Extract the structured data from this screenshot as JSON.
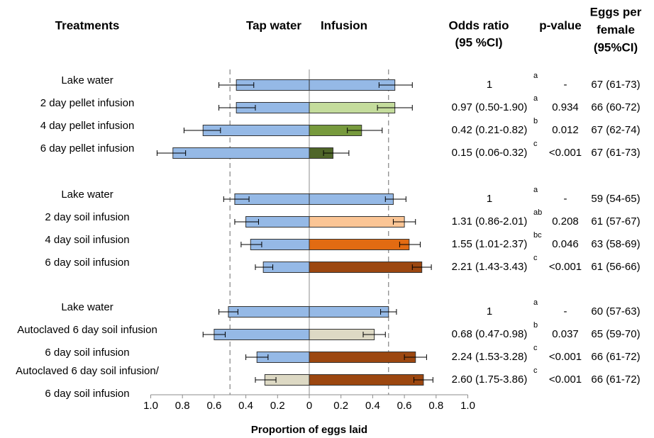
{
  "chart_data": {
    "type": "bar",
    "orientation": "horizontal-back-to-back",
    "xlabel": "Proportion of eggs laid",
    "xlim": [
      -1.0,
      1.0
    ],
    "x_ticks": [
      "1.0",
      "0.8",
      "0.6",
      "0.4",
      "0.2",
      "0",
      "0.2",
      "0.4",
      "0.6",
      "0.8",
      "1.0"
    ],
    "reference_lines": [
      -0.5,
      0.5
    ],
    "headers": {
      "treatments": "Treatments",
      "tap": "Tap water",
      "infusion": "Infusion",
      "odds_line1": "Odds ratio",
      "odds_line2": "(95 %CI)",
      "pvalue": "p-value",
      "eggs_line1": "Eggs per",
      "eggs_line2": "female",
      "eggs_line3": "(95%CI)"
    },
    "colors": {
      "tap": "#95b9e6",
      "lake": "#95b9e6",
      "pellet2": "#c4dc9c",
      "pellet4": "#779a3d",
      "pellet6": "#4f6629",
      "soil2": "#fbc595",
      "soil4": "#e26b12",
      "soil6": "#9c4710",
      "auto": "#ddd9c4"
    },
    "rows": [
      {
        "label": "Lake water",
        "tap": 0.46,
        "tap_err": [
          0.35,
          0.57
        ],
        "inf": 0.54,
        "inf_err": [
          0.44,
          0.65
        ],
        "color": "lake",
        "odds": "1",
        "sup": "a",
        "p": "-",
        "eggs": "67 (61-73)"
      },
      {
        "label": "2 day pellet infusion",
        "tap": 0.46,
        "tap_err": [
          0.34,
          0.57
        ],
        "inf": 0.54,
        "inf_err": [
          0.43,
          0.65
        ],
        "color": "pellet2",
        "odds": "0.97 (0.50-1.90)",
        "sup": "a",
        "p": "0.934",
        "eggs": "66 (60-72)"
      },
      {
        "label": "4 day pellet infusion",
        "tap": 0.67,
        "tap_err": [
          0.56,
          0.79
        ],
        "inf": 0.33,
        "inf_err": [
          0.24,
          0.46
        ],
        "color": "pellet4",
        "odds": "0.42 (0.21-0.82)",
        "sup": "b",
        "p": "0.012",
        "eggs": "67 (62-74)"
      },
      {
        "label": "6 day pellet infusion",
        "tap": 0.86,
        "tap_err": [
          0.78,
          0.96
        ],
        "inf": 0.15,
        "inf_err": [
          0.09,
          0.25
        ],
        "color": "pellet6",
        "odds": "0.15 (0.06-0.32)",
        "sup": "c",
        "p": "<0.001",
        "eggs": "67 (61-73)"
      },
      {
        "label": "Lake water",
        "tap": 0.47,
        "tap_err": [
          0.38,
          0.54
        ],
        "inf": 0.53,
        "inf_err": [
          0.48,
          0.61
        ],
        "color": "lake",
        "odds": "1",
        "sup": "a",
        "p": "-",
        "eggs": "59 (54-65)"
      },
      {
        "label": "2 day soil infusion",
        "tap": 0.4,
        "tap_err": [
          0.32,
          0.47
        ],
        "inf": 0.6,
        "inf_err": [
          0.53,
          0.67
        ],
        "color": "soil2",
        "odds": "1.31 (0.86-2.01)",
        "sup": "ab",
        "p": "0.208",
        "eggs": "61 (57-67)"
      },
      {
        "label": "4 day soil infusion",
        "tap": 0.37,
        "tap_err": [
          0.3,
          0.43
        ],
        "inf": 0.63,
        "inf_err": [
          0.57,
          0.7
        ],
        "color": "soil4",
        "odds": "1.55 (1.01-2.37)",
        "sup": "bc",
        "p": "0.046",
        "eggs": "63 (58-69)"
      },
      {
        "label": "6 day soil infusion",
        "tap": 0.29,
        "tap_err": [
          0.23,
          0.34
        ],
        "inf": 0.71,
        "inf_err": [
          0.65,
          0.77
        ],
        "color": "soil6",
        "odds": "2.21 (1.43-3.43)",
        "sup": "c",
        "p": "<0.001",
        "eggs": "61 (56-66)"
      },
      {
        "label": "Lake water",
        "tap": 0.51,
        "tap_err": [
          0.45,
          0.57
        ],
        "inf": 0.5,
        "inf_err": [
          0.45,
          0.55
        ],
        "color": "lake",
        "odds": "1",
        "sup": "a",
        "p": "-",
        "eggs": "60 (57-63)"
      },
      {
        "label": "Autoclaved 6 day soil infusion",
        "tap": 0.6,
        "tap_err": [
          0.53,
          0.67
        ],
        "inf": 0.41,
        "inf_err": [
          0.34,
          0.48
        ],
        "color": "auto",
        "odds": "0.68 (0.47-0.98)",
        "sup": "b",
        "p": "0.037",
        "eggs": "65 (59-70)"
      },
      {
        "label": "6 day soil infusion",
        "tap": 0.33,
        "tap_err": [
          0.26,
          0.4
        ],
        "inf": 0.67,
        "inf_err": [
          0.6,
          0.74
        ],
        "color": "soil6",
        "odds": "2.24 (1.53-3.28)",
        "sup": "c",
        "p": "<0.001",
        "eggs": "66 (61-72)"
      },
      {
        "label": "Autoclaved 6 day soil infusion/",
        "label2": "6 day soil infusion",
        "tap": 0.28,
        "tap_err": [
          0.21,
          0.34
        ],
        "inf": 0.72,
        "inf_err": [
          0.66,
          0.78
        ],
        "color": "soil6",
        "tap_color": "auto",
        "odds": "2.60 (1.75-3.86)",
        "sup": "c",
        "p": "<0.001",
        "eggs": "66 (61-72)"
      }
    ]
  }
}
